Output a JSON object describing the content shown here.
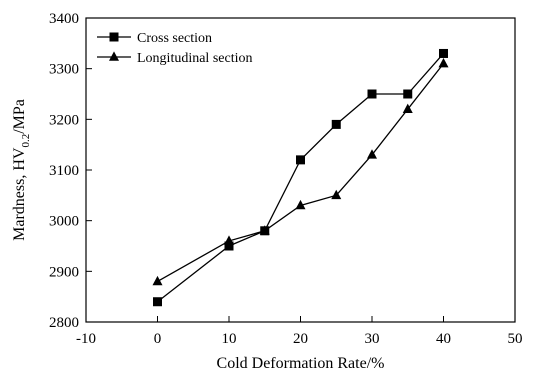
{
  "chart_data": {
    "type": "line",
    "title": "",
    "xlabel": "Cold Deformation Rate/%",
    "ylabel": "Mardness, HV0.2/MPa",
    "ylabel_parts": {
      "main": "Mardness, HV",
      "subscript": "0.2",
      "unit": "/MPa"
    },
    "xlim": [
      -10,
      50
    ],
    "ylim": [
      2800,
      3400
    ],
    "xticks": [
      -10,
      0,
      10,
      20,
      30,
      40,
      50
    ],
    "yticks": [
      2800,
      2900,
      3000,
      3100,
      3200,
      3300,
      3400
    ],
    "grid": false,
    "legend_position": "top-left",
    "series": [
      {
        "name": "Cross section",
        "marker": "square",
        "color": "#000000",
        "x": [
          0,
          10,
          15,
          20,
          25,
          30,
          35,
          40
        ],
        "y": [
          2840,
          2950,
          2980,
          3120,
          3190,
          3250,
          3250,
          3330
        ]
      },
      {
        "name": "Longitudinal section",
        "marker": "triangle",
        "color": "#000000",
        "x": [
          0,
          10,
          15,
          20,
          25,
          30,
          35,
          40
        ],
        "y": [
          2880,
          2960,
          2980,
          3030,
          3050,
          3130,
          3220,
          3310
        ]
      }
    ]
  }
}
